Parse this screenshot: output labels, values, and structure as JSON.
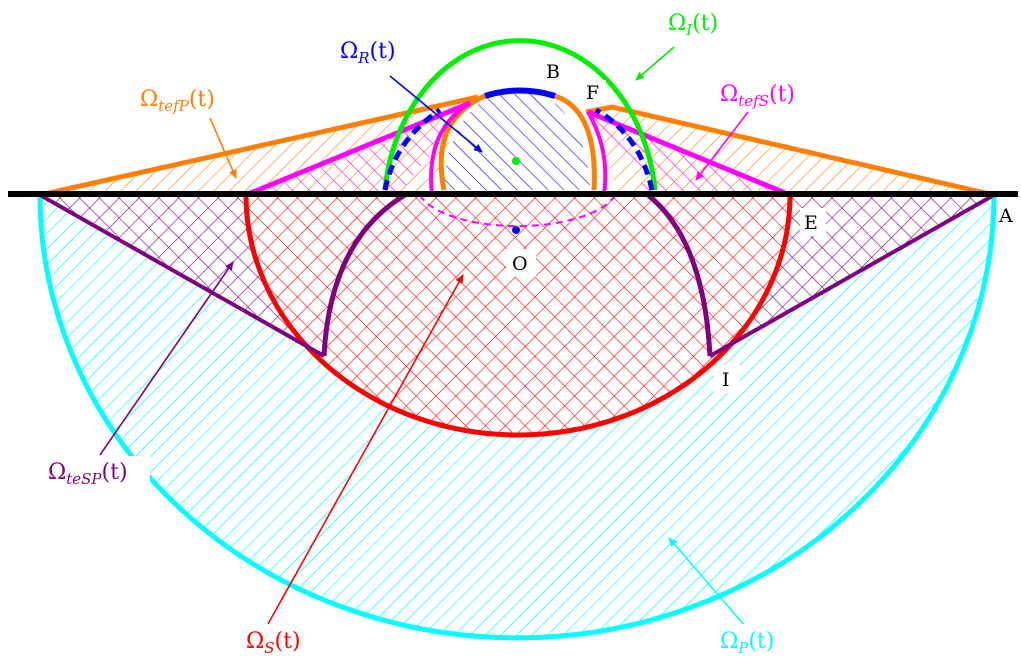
{
  "colors": {
    "black": "#000000",
    "cyan": "#00ffff",
    "red": "#ff0000",
    "purple": "#7f007f",
    "orange": "#ff7f00",
    "magenta": "#ff00ff",
    "blue": "#0000ff",
    "green": "#00ee00"
  },
  "regions": {
    "omega_P": {
      "base": "Ω",
      "sub": "P",
      "arg": "(t)"
    },
    "omega_S": {
      "base": "Ω",
      "sub": "S",
      "arg": "(t)"
    },
    "omega_teSP": {
      "base": "Ω",
      "sub": "teSP",
      "arg": "(t)"
    },
    "omega_tefP": {
      "base": "Ω",
      "sub": "tefP",
      "arg": "(t)"
    },
    "omega_tefS": {
      "base": "Ω",
      "sub": "tefS",
      "arg": "(t)"
    },
    "omega_R": {
      "base": "Ω",
      "sub": "R",
      "arg": "(t)"
    },
    "omega_I": {
      "base": "Ω",
      "sub": "I",
      "arg": "(t)"
    }
  },
  "points": {
    "A": "A",
    "B": "B",
    "E": "E",
    "F": "F",
    "I": "I",
    "O": "O"
  }
}
